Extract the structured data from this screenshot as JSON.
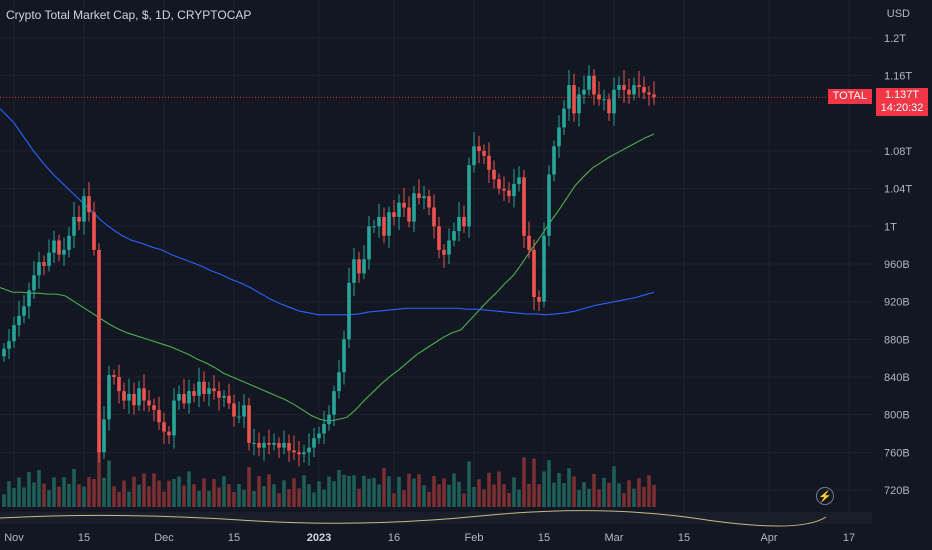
{
  "header": {
    "title": "Crypto Total Market Cap, $, 1D, CRYPTOCAP",
    "currency": "USD"
  },
  "last_price": {
    "series_label": "TOTAL",
    "value_label": "1.137T",
    "countdown": "14:20:32"
  },
  "icons": {
    "indicator": "lightning-bolt-icon"
  },
  "colors": {
    "background": "#131722",
    "up": "#26a69a",
    "down": "#ef5350",
    "ma_fast": "#4caf50",
    "ma_slow": "#2962ff",
    "price_line": "#f23645"
  },
  "chart_data": {
    "type": "candlestick",
    "title": "Crypto Total Market Cap, $, 1D, CRYPTOCAP",
    "y_unit": "USD",
    "ylim": [
      700,
      1230
    ],
    "y_ticks": [
      {
        "label": "720B",
        "value": 720
      },
      {
        "label": "760B",
        "value": 760
      },
      {
        "label": "800B",
        "value": 800
      },
      {
        "label": "840B",
        "value": 840
      },
      {
        "label": "880B",
        "value": 880
      },
      {
        "label": "920B",
        "value": 920
      },
      {
        "label": "960B",
        "value": 960
      },
      {
        "label": "1T",
        "value": 1000
      },
      {
        "label": "1.04T",
        "value": 1040
      },
      {
        "label": "1.08T",
        "value": 1080
      },
      {
        "label": "1.16T",
        "value": 1160
      },
      {
        "label": "1.2T",
        "value": 1200
      }
    ],
    "x_ticks": [
      "Nov",
      "15",
      "Dec",
      "15",
      "2023",
      "16",
      "Feb",
      "15",
      "Mar",
      "15",
      "Apr",
      "17"
    ],
    "x_tick_index": [
      2,
      16,
      32,
      46,
      63,
      78,
      94,
      108,
      122,
      136,
      153,
      169
    ],
    "last_value": 1137,
    "candles_close": [
      870,
      878,
      895,
      905,
      915,
      932,
      948,
      962,
      958,
      972,
      985,
      970,
      975,
      990,
      1010,
      1005,
      1032,
      1015,
      975,
      760,
      795,
      842,
      840,
      825,
      815,
      822,
      810,
      828,
      815,
      810,
      805,
      792,
      782,
      778,
      815,
      822,
      812,
      825,
      820,
      835,
      822,
      828,
      825,
      818,
      820,
      812,
      798,
      798,
      810,
      770,
      770,
      765,
      770,
      768,
      770,
      765,
      770,
      762,
      760,
      758,
      760,
      765,
      775,
      780,
      790,
      800,
      825,
      845,
      880,
      940,
      965,
      950,
      965,
      1000,
      1000,
      1010,
      990,
      1015,
      1010,
      1025,
      1020,
      1005,
      1035,
      1030,
      1032,
      1020,
      1000,
      975,
      970,
      985,
      995,
      1010,
      1000,
      1065,
      1085,
      1080,
      1075,
      1060,
      1050,
      1040,
      1038,
      1032,
      1045,
      1052,
      990,
      975,
      925,
      920,
      990,
      1055,
      1085,
      1105,
      1125,
      1150,
      1120,
      1140,
      1145,
      1160,
      1140,
      1135,
      1135,
      1120,
      1145,
      1150,
      1145,
      1140,
      1150,
      1148,
      1142,
      1140,
      1137
    ],
    "series": [
      {
        "name": "MA fast",
        "values": [
          935,
          930,
          930,
          929,
          929,
          928,
          928,
          926,
          920,
          914,
          908,
          902,
          896,
          891,
          887,
          884,
          881,
          878,
          875,
          872,
          868,
          864,
          859,
          855,
          850,
          844,
          840,
          836,
          832,
          828,
          824,
          820,
          816,
          811,
          805,
          799,
          795,
          793,
          795,
          797,
          805,
          815,
          824,
          833,
          841,
          848,
          856,
          864,
          870,
          876,
          882,
          887,
          890,
          900,
          910,
          920,
          929,
          939,
          948,
          961,
          975,
          988,
          1002,
          1015,
          1029,
          1043,
          1053,
          1062,
          1068,
          1074,
          1079,
          1084,
          1089,
          1094,
          1098
        ]
      },
      {
        "name": "MA slow",
        "values": [
          1125,
          1110,
          1095,
          1080,
          1067,
          1055,
          1045,
          1035,
          1025,
          1015,
          1005,
          997,
          990,
          985,
          982,
          978,
          975,
          970,
          966,
          962,
          958,
          953,
          949,
          944,
          940,
          935,
          929,
          923,
          918,
          914,
          910,
          908,
          906,
          906,
          906,
          906,
          907,
          909,
          910,
          911,
          912,
          913,
          913,
          913,
          913,
          913,
          913,
          912,
          912,
          911,
          910,
          909,
          908,
          907,
          907,
          906,
          907,
          908,
          910,
          913,
          916,
          918,
          920,
          922,
          924,
          927,
          930
        ]
      }
    ],
    "volume_scale": "relative",
    "grid": true
  }
}
